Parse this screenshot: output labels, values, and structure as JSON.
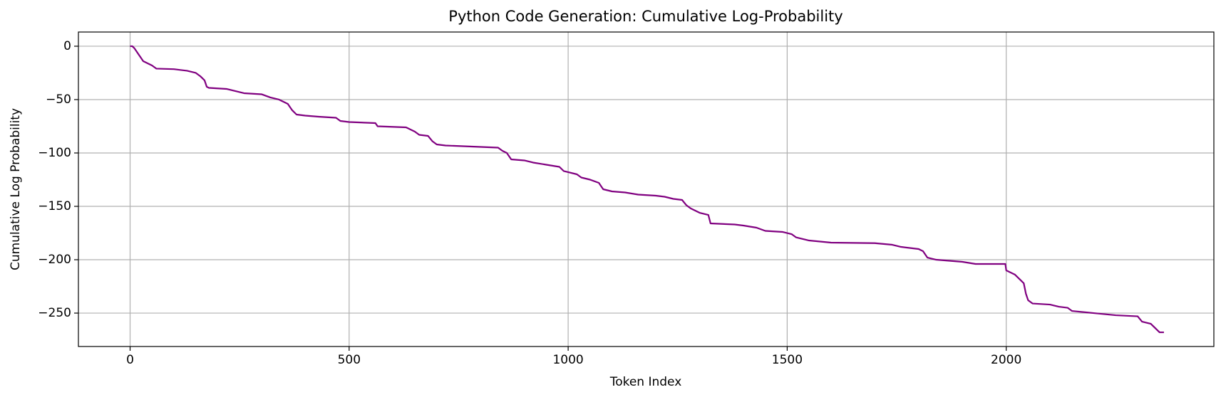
{
  "chart_data": {
    "type": "line",
    "title": "Python Code Generation: Cumulative Log-Probability",
    "xlabel": "Token Index",
    "ylabel": "Cumulative Log Probability",
    "x": [
      0,
      5,
      10,
      15,
      20,
      25,
      30,
      40,
      50,
      60,
      100,
      130,
      150,
      160,
      170,
      175,
      180,
      220,
      240,
      260,
      300,
      320,
      340,
      360,
      370,
      380,
      400,
      430,
      470,
      480,
      500,
      560,
      565,
      630,
      650,
      660,
      680,
      690,
      700,
      720,
      780,
      840,
      850,
      860,
      870,
      900,
      920,
      950,
      980,
      990,
      1000,
      1020,
      1030,
      1050,
      1070,
      1080,
      1100,
      1130,
      1160,
      1200,
      1220,
      1240,
      1260,
      1270,
      1280,
      1300,
      1320,
      1325,
      1380,
      1400,
      1430,
      1450,
      1490,
      1510,
      1520,
      1530,
      1550,
      1600,
      1700,
      1740,
      1760,
      1800,
      1810,
      1820,
      1840,
      1900,
      1930,
      1998,
      2000,
      2020,
      2030,
      2040,
      2045,
      2050,
      2060,
      2100,
      2120,
      2140,
      2150,
      2200,
      2250,
      2300,
      2310,
      2330,
      2340,
      2350,
      2360
    ],
    "series": [
      {
        "name": "Cumulative Log Probability",
        "color": "#800080",
        "values": [
          0,
          0,
          -2,
          -5,
          -8,
          -11,
          -14,
          -16,
          -18,
          -21,
          -21.5,
          -23,
          -25,
          -28,
          -32,
          -38,
          -39,
          -40,
          -42,
          -44,
          -45,
          -48,
          -50,
          -54,
          -60,
          -64,
          -65,
          -66,
          -67,
          -70,
          -71,
          -72,
          -75,
          -76,
          -80,
          -83,
          -84,
          -89,
          -92,
          -93,
          -94,
          -95,
          -98,
          -100,
          -106,
          -107,
          -109,
          -111,
          -113,
          -117,
          -118,
          -120,
          -123,
          -125,
          -128,
          -134,
          -136,
          -137,
          -139,
          -140,
          -141,
          -143,
          -144,
          -149,
          -152,
          -156,
          -158,
          -166,
          -167,
          -168,
          -170,
          -173,
          -174,
          -176,
          -179,
          -180,
          -182,
          -184,
          -184.5,
          -186,
          -188,
          -190,
          -192,
          -198,
          -200,
          -202,
          -204,
          -204,
          -210,
          -214,
          -218,
          -222,
          -232,
          -238,
          -241,
          -242,
          -244,
          -245,
          -248,
          -250,
          -252,
          -253,
          -258,
          -260,
          -264,
          -268,
          -268
        ]
      }
    ],
    "xlim": [
      -118,
      2474
    ],
    "ylim": [
      -281.3,
      13.3
    ],
    "xticks": [
      0,
      500,
      1000,
      1500,
      2000
    ],
    "yticks": [
      {
        "value": -250,
        "label": "−250"
      },
      {
        "value": -200,
        "label": "−200"
      },
      {
        "value": -150,
        "label": "−150"
      },
      {
        "value": -100,
        "label": "−100"
      },
      {
        "value": -50,
        "label": "−50"
      },
      0
    ],
    "grid": true
  }
}
